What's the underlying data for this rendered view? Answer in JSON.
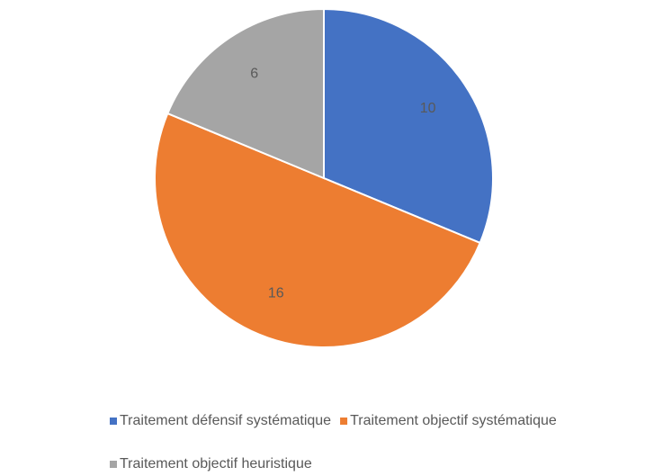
{
  "chart_data": {
    "type": "pie",
    "categories": [
      "Traitement défensif systématique",
      "Traitement objectif systématique",
      "Traitement objectif heuristique"
    ],
    "values": [
      10,
      16,
      6
    ],
    "colors": [
      "#4472c4",
      "#ed7d31",
      "#a5a5a5"
    ],
    "legend": "bottom"
  }
}
